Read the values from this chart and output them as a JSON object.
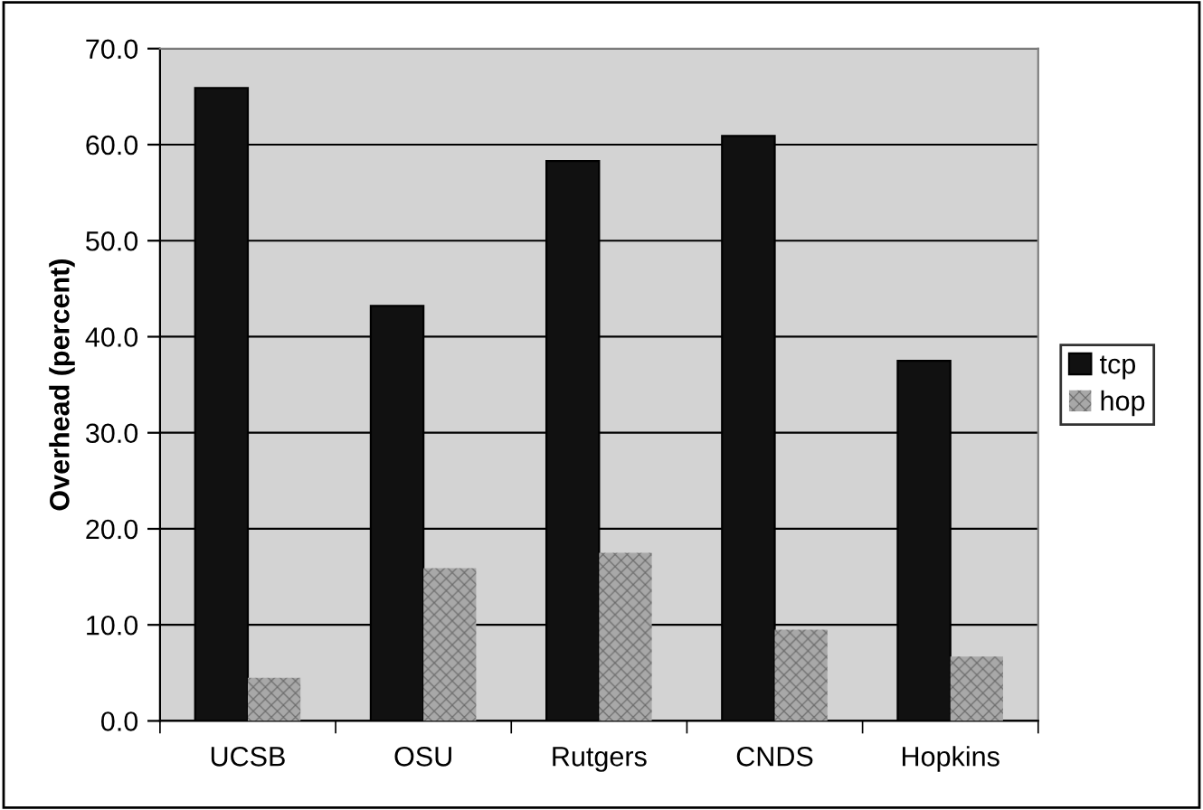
{
  "chart_data": {
    "type": "bar",
    "ylabel": "Overhead (percent)",
    "categories": [
      "UCSB",
      "OSU",
      "Rutgers",
      "CNDS",
      "Hopkins"
    ],
    "series": [
      {
        "name": "tcp",
        "color": "#111111",
        "values": [
          65.9,
          43.2,
          58.3,
          60.9,
          37.5
        ]
      },
      {
        "name": "hop",
        "color": "#a8a8a8",
        "values": [
          4.5,
          15.9,
          17.5,
          9.5,
          6.7
        ]
      }
    ],
    "ylim": [
      0,
      70
    ],
    "yticks": [
      {
        "value": 0,
        "label": "0.0"
      },
      {
        "value": 10,
        "label": "10.0"
      },
      {
        "value": 20,
        "label": "20.0"
      },
      {
        "value": 30,
        "label": "30.0"
      },
      {
        "value": 40,
        "label": "40.0"
      },
      {
        "value": 50,
        "label": "50.0"
      },
      {
        "value": 60,
        "label": "60.0"
      },
      {
        "value": 70,
        "label": "70.0"
      }
    ],
    "grid": "y",
    "legend": "right"
  }
}
